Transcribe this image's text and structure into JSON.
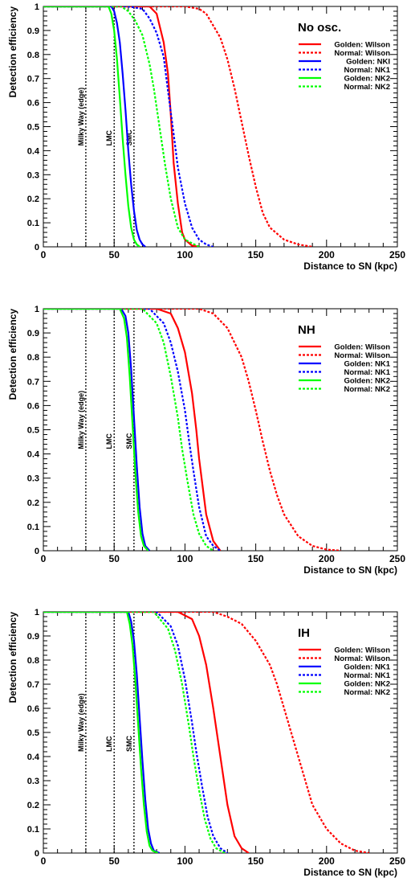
{
  "chart_data": [
    {
      "type": "line",
      "title": "No osc.",
      "xlabel": "Distance to SN (kpc)",
      "ylabel": "Detection efficiency",
      "xlim": [
        0,
        250
      ],
      "ylim": [
        0,
        1
      ],
      "xticks": [
        "0",
        "50",
        "100",
        "150",
        "200",
        "250"
      ],
      "yticks": [
        "0",
        "0.1",
        "0.2",
        "0.3",
        "0.4",
        "0.5",
        "0.6",
        "0.7",
        "0.8",
        "0.9",
        "1"
      ],
      "reference_lines": [
        {
          "label": "Milky Way (edge)",
          "x": 30
        },
        {
          "label": "LMC",
          "x": 50
        },
        {
          "label": "SMC",
          "x": 64
        }
      ],
      "legend_position": "top-right",
      "series": [
        {
          "name": "Golden: Wilson",
          "color": "#ff0000",
          "style": "solid",
          "x": [
            0,
            60,
            75,
            80,
            85,
            88,
            90,
            92,
            95,
            98,
            100,
            105,
            110
          ],
          "y": [
            1,
            1,
            1,
            0.97,
            0.85,
            0.72,
            0.55,
            0.35,
            0.18,
            0.06,
            0.03,
            0.005,
            0
          ]
        },
        {
          "name": "Normal: Wilson",
          "color": "#ff0000",
          "style": "dotted",
          "x": [
            0,
            100,
            110,
            115,
            120,
            125,
            130,
            135,
            140,
            145,
            150,
            155,
            160,
            170,
            180,
            190
          ],
          "y": [
            1,
            1,
            0.99,
            0.97,
            0.92,
            0.87,
            0.78,
            0.66,
            0.52,
            0.38,
            0.25,
            0.14,
            0.08,
            0.03,
            0.01,
            0
          ]
        },
        {
          "name": "Golden: NKI",
          "color": "#0000ff",
          "style": "solid",
          "x": [
            0,
            48,
            50,
            52,
            54,
            56,
            58,
            60,
            62,
            64,
            66,
            68,
            70,
            72
          ],
          "y": [
            1,
            1,
            0.98,
            0.93,
            0.85,
            0.72,
            0.57,
            0.4,
            0.26,
            0.15,
            0.07,
            0.03,
            0.01,
            0
          ]
        },
        {
          "name": "Normal: NK1",
          "color": "#0000ff",
          "style": "dotted",
          "x": [
            0,
            60,
            70,
            75,
            80,
            85,
            88,
            92,
            95,
            100,
            105,
            110,
            115,
            120
          ],
          "y": [
            1,
            1,
            0.99,
            0.95,
            0.89,
            0.79,
            0.65,
            0.47,
            0.33,
            0.18,
            0.08,
            0.03,
            0.01,
            0
          ]
        },
        {
          "name": "Golden: NK2",
          "color": "#00ff00",
          "style": "solid",
          "x": [
            0,
            46,
            48,
            50,
            52,
            54,
            56,
            58,
            60,
            62,
            64,
            66,
            68
          ],
          "y": [
            1,
            1,
            0.97,
            0.9,
            0.78,
            0.62,
            0.45,
            0.3,
            0.17,
            0.08,
            0.03,
            0.01,
            0
          ]
        },
        {
          "name": "Normal: NK2",
          "color": "#00ff00",
          "style": "dotted",
          "x": [
            0,
            55,
            60,
            65,
            70,
            75,
            78,
            82,
            86,
            90,
            95,
            100,
            110
          ],
          "y": [
            1,
            1,
            0.98,
            0.94,
            0.88,
            0.76,
            0.66,
            0.5,
            0.34,
            0.2,
            0.08,
            0.03,
            0
          ]
        }
      ]
    },
    {
      "type": "line",
      "title": "NH",
      "xlabel": "Distance to SN (kpc)",
      "ylabel": "Detection efficiency",
      "xlim": [
        0,
        250
      ],
      "ylim": [
        0,
        1
      ],
      "xticks": [
        "0",
        "50",
        "100",
        "150",
        "200",
        "250"
      ],
      "yticks": [
        "0",
        "0.1",
        "0.2",
        "0.3",
        "0.4",
        "0.5",
        "0.6",
        "0.7",
        "0.8",
        "0.9",
        "1"
      ],
      "reference_lines": [
        {
          "label": "Milky Way (edge)",
          "x": 30
        },
        {
          "label": "LMC",
          "x": 50
        },
        {
          "label": "SMC",
          "x": 64
        }
      ],
      "legend_position": "top-right",
      "series": [
        {
          "name": "Golden: Wilson",
          "color": "#ff0000",
          "style": "solid",
          "x": [
            0,
            80,
            90,
            95,
            100,
            105,
            108,
            110,
            115,
            120,
            125
          ],
          "y": [
            1,
            1,
            0.98,
            0.92,
            0.82,
            0.65,
            0.5,
            0.38,
            0.15,
            0.04,
            0
          ]
        },
        {
          "name": "Normal: Wilson",
          "color": "#ff0000",
          "style": "dotted",
          "x": [
            0,
            110,
            120,
            130,
            140,
            145,
            150,
            155,
            160,
            165,
            170,
            180,
            190,
            200,
            210
          ],
          "y": [
            1,
            1,
            0.98,
            0.92,
            0.8,
            0.7,
            0.58,
            0.45,
            0.33,
            0.23,
            0.15,
            0.06,
            0.02,
            0.005,
            0
          ]
        },
        {
          "name": "Golden: NK1",
          "color": "#0000ff",
          "style": "solid",
          "x": [
            0,
            55,
            58,
            60,
            62,
            64,
            66,
            68,
            70,
            72,
            75
          ],
          "y": [
            1,
            1,
            0.97,
            0.9,
            0.75,
            0.55,
            0.35,
            0.18,
            0.07,
            0.02,
            0
          ]
        },
        {
          "name": "Normal: NK1",
          "color": "#0000ff",
          "style": "dotted",
          "x": [
            0,
            75,
            85,
            90,
            95,
            100,
            103,
            106,
            110,
            115,
            120,
            125
          ],
          "y": [
            1,
            1,
            0.94,
            0.86,
            0.74,
            0.58,
            0.45,
            0.33,
            0.18,
            0.06,
            0.02,
            0
          ]
        },
        {
          "name": "Golden: NK2",
          "color": "#00ff00",
          "style": "solid",
          "x": [
            0,
            54,
            57,
            59,
            61,
            63,
            65,
            67,
            69,
            71,
            74
          ],
          "y": [
            1,
            1,
            0.96,
            0.88,
            0.72,
            0.52,
            0.32,
            0.16,
            0.06,
            0.02,
            0
          ]
        },
        {
          "name": "Normal: NK2",
          "color": "#00ff00",
          "style": "dotted",
          "x": [
            0,
            70,
            80,
            85,
            90,
            95,
            98,
            102,
            106,
            110,
            115,
            120
          ],
          "y": [
            1,
            1,
            0.94,
            0.86,
            0.72,
            0.55,
            0.42,
            0.28,
            0.15,
            0.07,
            0.02,
            0
          ]
        }
      ]
    },
    {
      "type": "line",
      "title": "IH",
      "xlabel": "Distance to SN (kpc)",
      "ylabel": "Detection efficiency",
      "xlim": [
        0,
        250
      ],
      "ylim": [
        0,
        1
      ],
      "xticks": [
        "0",
        "50",
        "100",
        "150",
        "200",
        "250"
      ],
      "yticks": [
        "0",
        "0.1",
        "0.2",
        "0.3",
        "0.4",
        "0.5",
        "0.6",
        "0.7",
        "0.8",
        "0.9",
        "1"
      ],
      "reference_lines": [
        {
          "label": "Milky Way (edge)",
          "x": 30
        },
        {
          "label": "LMC",
          "x": 50
        },
        {
          "label": "SMC",
          "x": 64
        }
      ],
      "legend_position": "top-right",
      "series": [
        {
          "name": "Golden: Wilson",
          "color": "#ff0000",
          "style": "solid",
          "x": [
            0,
            95,
            105,
            110,
            115,
            120,
            123,
            126,
            130,
            135,
            140,
            145
          ],
          "y": [
            1,
            1,
            0.97,
            0.9,
            0.78,
            0.6,
            0.48,
            0.36,
            0.2,
            0.07,
            0.02,
            0
          ]
        },
        {
          "name": "Normal: Wilson",
          "color": "#ff0000",
          "style": "dotted",
          "x": [
            0,
            120,
            130,
            140,
            150,
            160,
            165,
            170,
            175,
            180,
            185,
            190,
            200,
            210,
            220,
            230
          ],
          "y": [
            1,
            1,
            0.98,
            0.95,
            0.88,
            0.78,
            0.7,
            0.6,
            0.5,
            0.4,
            0.3,
            0.2,
            0.1,
            0.04,
            0.01,
            0
          ]
        },
        {
          "name": "Golden: NK1",
          "color": "#0000ff",
          "style": "solid",
          "x": [
            0,
            60,
            62,
            64,
            66,
            68,
            70,
            72,
            74,
            76,
            78,
            82
          ],
          "y": [
            1,
            1,
            0.96,
            0.88,
            0.74,
            0.56,
            0.38,
            0.22,
            0.1,
            0.04,
            0.01,
            0
          ]
        },
        {
          "name": "Normal: NK1",
          "color": "#0000ff",
          "style": "dotted",
          "x": [
            0,
            80,
            90,
            95,
            100,
            105,
            108,
            112,
            116,
            120,
            125,
            130
          ],
          "y": [
            1,
            1,
            0.94,
            0.86,
            0.72,
            0.54,
            0.42,
            0.28,
            0.15,
            0.07,
            0.02,
            0
          ]
        },
        {
          "name": "Golden: NK2",
          "color": "#00ff00",
          "style": "solid",
          "x": [
            0,
            59,
            61,
            63,
            65,
            67,
            69,
            71,
            73,
            75,
            77,
            81
          ],
          "y": [
            1,
            1,
            0.95,
            0.86,
            0.71,
            0.53,
            0.35,
            0.2,
            0.09,
            0.03,
            0.01,
            0
          ]
        },
        {
          "name": "Normal: NK2",
          "color": "#00ff00",
          "style": "dotted",
          "x": [
            0,
            78,
            88,
            93,
            98,
            103,
            106,
            110,
            114,
            118,
            122,
            128
          ],
          "y": [
            1,
            1,
            0.93,
            0.84,
            0.7,
            0.52,
            0.4,
            0.26,
            0.14,
            0.06,
            0.02,
            0
          ]
        }
      ]
    }
  ]
}
